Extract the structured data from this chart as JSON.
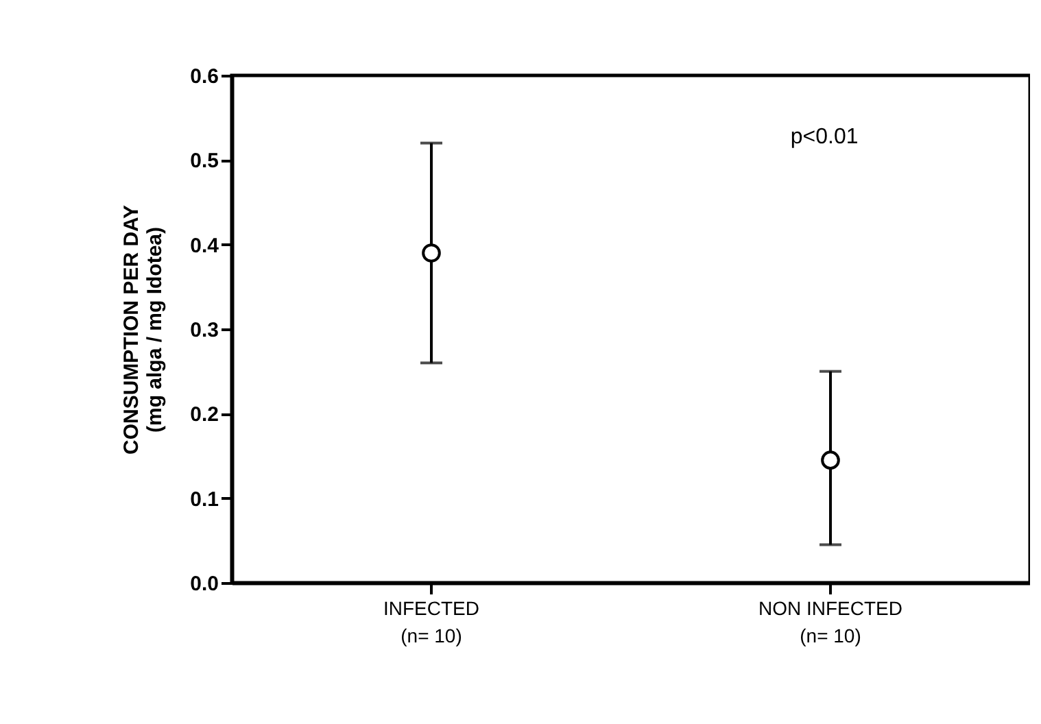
{
  "chart_data": {
    "type": "scatter",
    "categories": [
      "INFECTED\n(n= 10)",
      "NON INFECTED\n(n= 10)"
    ],
    "values": [
      0.39,
      0.145
    ],
    "errors": [
      [
        0.26,
        0.52
      ],
      [
        0.045,
        0.25
      ]
    ],
    "color": "#000000",
    "marker": "circle",
    "ylabel": "CONSUMPTION PER DAY\n(mg alga / mg Idotea)",
    "ylim": [
      0,
      0.6
    ],
    "yticks": [
      {
        "value": 0,
        "label": "0.0"
      },
      0.1,
      0.2,
      0.3,
      0.4,
      0.5,
      0.6
    ],
    "annotations": [
      "p<0.01"
    ],
    "grid": false
  }
}
